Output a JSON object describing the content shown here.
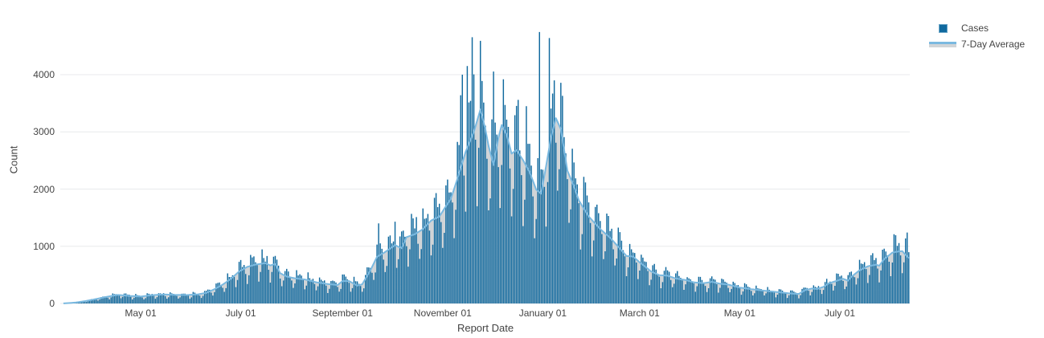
{
  "colors": {
    "background": "#ffffff",
    "grid": "#e8eaec",
    "text": "#444444"
  },
  "chart_data": {
    "type": "bar",
    "xlabel": "Report Date",
    "ylabel": "Count",
    "grid": "horizontal-only",
    "legend_position": "top-right",
    "x_start_date": "2020-03-15",
    "x_end_date": "2021-08-12",
    "ylim": [
      0,
      5025
    ],
    "y_ticks": [
      0,
      1000,
      2000,
      3000,
      4000
    ],
    "y_tick_labels": [
      "0",
      "1000",
      "2000",
      "3000",
      "4000"
    ],
    "x_ticks": [
      {
        "date": "2020-05-01",
        "label": "May 01"
      },
      {
        "date": "2020-07-01",
        "label": "July 01"
      },
      {
        "date": "2020-09-01",
        "label": "September 01"
      },
      {
        "date": "2020-11-01",
        "label": "November 01"
      },
      {
        "date": "2021-01-01",
        "label": "January 01"
      },
      {
        "date": "2021-03-01",
        "label": "March 01"
      },
      {
        "date": "2021-05-01",
        "label": "May 01"
      },
      {
        "date": "2021-07-01",
        "label": "July 01"
      }
    ],
    "series": [
      {
        "name": "Cases",
        "type": "bar",
        "color": "#10699e",
        "swatch_border": "#6ba6c8",
        "daily_model": {
          "weekly_pattern": [
            0.58,
            0.76,
            1.25,
            1.22,
            1.14,
            1.08,
            0.9
          ],
          "noise_amp": 0.09,
          "noise_seed": 12.9898,
          "spike_days": {
            "2020-07-07": 850,
            "2020-07-17": 830,
            "2020-09-23": 1400,
            "2020-10-03": 1430,
            "2020-10-16": 1510,
            "2020-10-21": 1480,
            "2020-11-12": 3640,
            "2020-11-13": 4000,
            "2020-11-16": 4150,
            "2020-11-19": 4655,
            "2020-11-20": 4005,
            "2020-11-25": 3890,
            "2020-12-02": 4055,
            "2020-12-09": 3470,
            "2020-12-17": 3560,
            "2020-12-22": 3450,
            "2020-12-30": 4745,
            "2021-01-05": 4640,
            "2021-01-08": 3900,
            "2021-08-03": 1210,
            "2021-08-11": 1240
          }
        }
      },
      {
        "name": "7-Day Average",
        "type": "line+area",
        "line_color": "#7ab9e0",
        "fill_color": "#d0d4d7",
        "anchors": [
          [
            "2020-03-15",
            2
          ],
          [
            "2020-03-22",
            15
          ],
          [
            "2020-03-29",
            45
          ],
          [
            "2020-04-05",
            85
          ],
          [
            "2020-04-12",
            125
          ],
          [
            "2020-04-17",
            150
          ],
          [
            "2020-04-24",
            132
          ],
          [
            "2020-05-01",
            122
          ],
          [
            "2020-05-08",
            145
          ],
          [
            "2020-05-15",
            158
          ],
          [
            "2020-05-22",
            150
          ],
          [
            "2020-05-29",
            148
          ],
          [
            "2020-06-05",
            160
          ],
          [
            "2020-06-10",
            185
          ],
          [
            "2020-06-15",
            250
          ],
          [
            "2020-06-20",
            330
          ],
          [
            "2020-06-25",
            430
          ],
          [
            "2020-06-30",
            560
          ],
          [
            "2020-07-05",
            640
          ],
          [
            "2020-07-10",
            680
          ],
          [
            "2020-07-16",
            705
          ],
          [
            "2020-07-19",
            665
          ],
          [
            "2020-07-22",
            690
          ],
          [
            "2020-07-25",
            530
          ],
          [
            "2020-07-29",
            470
          ],
          [
            "2020-08-03",
            440
          ],
          [
            "2020-08-09",
            420
          ],
          [
            "2020-08-16",
            370
          ],
          [
            "2020-08-23",
            340
          ],
          [
            "2020-08-29",
            322
          ],
          [
            "2020-09-01",
            390
          ],
          [
            "2020-09-05",
            392
          ],
          [
            "2020-09-10",
            312
          ],
          [
            "2020-09-13",
            335
          ],
          [
            "2020-09-18",
            580
          ],
          [
            "2020-09-22",
            815
          ],
          [
            "2020-09-27",
            900
          ],
          [
            "2020-10-03",
            1020
          ],
          [
            "2020-10-07",
            965
          ],
          [
            "2020-10-10",
            1160
          ],
          [
            "2020-10-15",
            1210
          ],
          [
            "2020-10-20",
            1300
          ],
          [
            "2020-10-25",
            1450
          ],
          [
            "2020-10-30",
            1520
          ],
          [
            "2020-11-03",
            1700
          ],
          [
            "2020-11-06",
            1830
          ],
          [
            "2020-11-10",
            2180
          ],
          [
            "2020-11-15",
            2650
          ],
          [
            "2020-11-20",
            3000
          ],
          [
            "2020-11-24",
            3390
          ],
          [
            "2020-11-27",
            3050
          ],
          [
            "2020-11-29",
            2750
          ],
          [
            "2020-12-02",
            2420
          ],
          [
            "2020-12-05",
            2900
          ],
          [
            "2020-12-07",
            3120
          ],
          [
            "2020-12-10",
            2950
          ],
          [
            "2020-12-13",
            2620
          ],
          [
            "2020-12-16",
            2680
          ],
          [
            "2020-12-20",
            2505
          ],
          [
            "2020-12-24",
            2295
          ],
          [
            "2020-12-28",
            1990
          ],
          [
            "2020-12-31",
            1920
          ],
          [
            "2021-01-03",
            2400
          ],
          [
            "2021-01-06",
            2900
          ],
          [
            "2021-01-09",
            3240
          ],
          [
            "2021-01-12",
            3050
          ],
          [
            "2021-01-16",
            2320
          ],
          [
            "2021-01-20",
            2050
          ],
          [
            "2021-01-23",
            1800
          ],
          [
            "2021-01-29",
            1520
          ],
          [
            "2021-02-05",
            1300
          ],
          [
            "2021-02-11",
            1150
          ],
          [
            "2021-02-17",
            960
          ],
          [
            "2021-02-21",
            830
          ],
          [
            "2021-02-25",
            820
          ],
          [
            "2021-03-01",
            720
          ],
          [
            "2021-03-08",
            560
          ],
          [
            "2021-03-13",
            495
          ],
          [
            "2021-03-18",
            485
          ],
          [
            "2021-03-23",
            437
          ],
          [
            "2021-03-29",
            410
          ],
          [
            "2021-04-03",
            370
          ],
          [
            "2021-04-09",
            355
          ],
          [
            "2021-04-14",
            378
          ],
          [
            "2021-04-19",
            345
          ],
          [
            "2021-04-24",
            330
          ],
          [
            "2021-05-01",
            278
          ],
          [
            "2021-05-08",
            250
          ],
          [
            "2021-05-14",
            230
          ],
          [
            "2021-05-21",
            208
          ],
          [
            "2021-05-27",
            190
          ],
          [
            "2021-06-02",
            172
          ],
          [
            "2021-06-06",
            168
          ],
          [
            "2021-06-10",
            235
          ],
          [
            "2021-06-14",
            262
          ],
          [
            "2021-06-17",
            252
          ],
          [
            "2021-06-21",
            290
          ],
          [
            "2021-06-24",
            350
          ],
          [
            "2021-06-29",
            395
          ],
          [
            "2021-07-01",
            415
          ],
          [
            "2021-07-03",
            432
          ],
          [
            "2021-07-06",
            398
          ],
          [
            "2021-07-08",
            465
          ],
          [
            "2021-07-13",
            580
          ],
          [
            "2021-07-18",
            650
          ],
          [
            "2021-07-23",
            678
          ],
          [
            "2021-07-25",
            660
          ],
          [
            "2021-07-28",
            775
          ],
          [
            "2021-08-02",
            890
          ],
          [
            "2021-08-05",
            905
          ],
          [
            "2021-08-08",
            915
          ],
          [
            "2021-08-10",
            850
          ],
          [
            "2021-08-12",
            790
          ]
        ]
      }
    ]
  }
}
